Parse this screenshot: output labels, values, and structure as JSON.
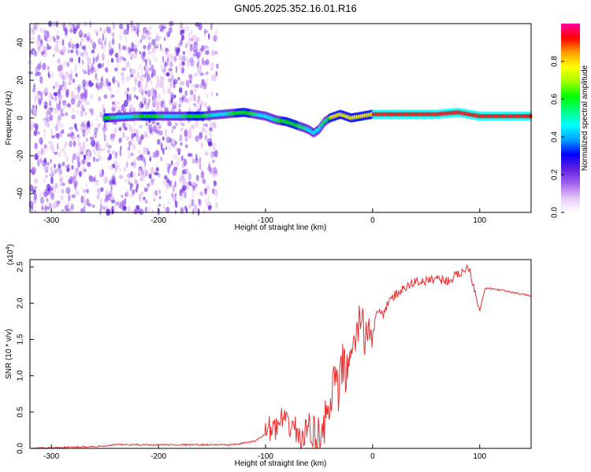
{
  "title": "GN05.2025.352.16.01.R16",
  "chart_data": [
    {
      "type": "heatmap",
      "xlabel": "Height of straight line (km)",
      "ylabel": "Frequency (Hz)",
      "xlim": [
        -320,
        148
      ],
      "ylim": [
        -50,
        50
      ],
      "xticks": [
        -300,
        -200,
        -100,
        0,
        100
      ],
      "yticks": [
        -40,
        -20,
        0,
        20,
        40
      ],
      "colorbar": {
        "label": "Normalized spectral amplitude",
        "range": [
          0,
          1
        ],
        "ticks": [
          "0.0",
          "0.2",
          "0.4",
          "0.6",
          "0.8"
        ],
        "tick_values": [
          0.0,
          0.2,
          0.4,
          0.6,
          0.8
        ],
        "colors": [
          "#ffffff",
          "#e6c8f5",
          "#a060f0",
          "#6020e0",
          "#0000ff",
          "#00a0ff",
          "#00ffff",
          "#00ff80",
          "#00ff00",
          "#a0ff00",
          "#ffff00",
          "#ffa000",
          "#ff0000",
          "#ff00a0"
        ]
      },
      "ridge": {
        "x": [
          -250,
          -220,
          -190,
          -160,
          -140,
          -120,
          -100,
          -90,
          -80,
          -70,
          -60,
          -55,
          -50,
          -45,
          -40,
          -35,
          -30,
          -20,
          -10,
          0,
          20,
          40,
          60,
          80,
          90,
          100,
          120,
          148
        ],
        "freq": [
          0,
          1,
          1,
          1,
          2,
          3,
          1,
          -1,
          -2,
          -4,
          -6,
          -8,
          -6,
          -2,
          0,
          1,
          2,
          0,
          1,
          2,
          2,
          2,
          2,
          3,
          2,
          1,
          1,
          1
        ]
      }
    },
    {
      "type": "line",
      "xlabel": "Height of straight line (km)",
      "ylabel": "SNR (10 * v/v)",
      "scale_note": "(x10",
      "scale_exp": "4",
      "scale_close": ")",
      "xlim": [
        -320,
        148
      ],
      "ylim": [
        0,
        2.6
      ],
      "xticks": [
        -300,
        -200,
        -100,
        0,
        100
      ],
      "yticks": [
        "0.0",
        "0.5",
        "1.0",
        "1.5",
        "2.0",
        "2.5"
      ],
      "ytick_values": [
        0,
        0.5,
        1.0,
        1.5,
        2.0,
        2.5
      ],
      "series": [
        {
          "name": "SNR",
          "color": "#e83030",
          "x": [
            -320,
            -250,
            -240,
            -200,
            -160,
            -130,
            -110,
            -100,
            -95,
            -90,
            -85,
            -80,
            -75,
            -70,
            -65,
            -60,
            -55,
            -50,
            -45,
            -40,
            -36,
            -32,
            -28,
            -24,
            -20,
            -16,
            -12,
            -8,
            -4,
            0,
            5,
            10,
            15,
            20,
            25,
            30,
            40,
            50,
            60,
            70,
            80,
            90,
            95,
            100,
            105,
            110,
            120,
            130,
            148
          ],
          "y": [
            0.0,
            0.03,
            0.05,
            0.05,
            0.05,
            0.05,
            0.1,
            0.2,
            0.3,
            0.25,
            0.4,
            0.3,
            0.35,
            0.2,
            0.1,
            0.35,
            0.15,
            0.2,
            0.35,
            0.5,
            1.0,
            0.7,
            1.2,
            1.0,
            1.5,
            1.3,
            1.9,
            1.5,
            1.7,
            1.6,
            1.9,
            1.8,
            2.05,
            2.1,
            2.15,
            2.2,
            2.3,
            2.3,
            2.35,
            2.3,
            2.4,
            2.5,
            2.2,
            1.9,
            2.2,
            2.2,
            2.18,
            2.15,
            2.1
          ]
        }
      ]
    }
  ]
}
